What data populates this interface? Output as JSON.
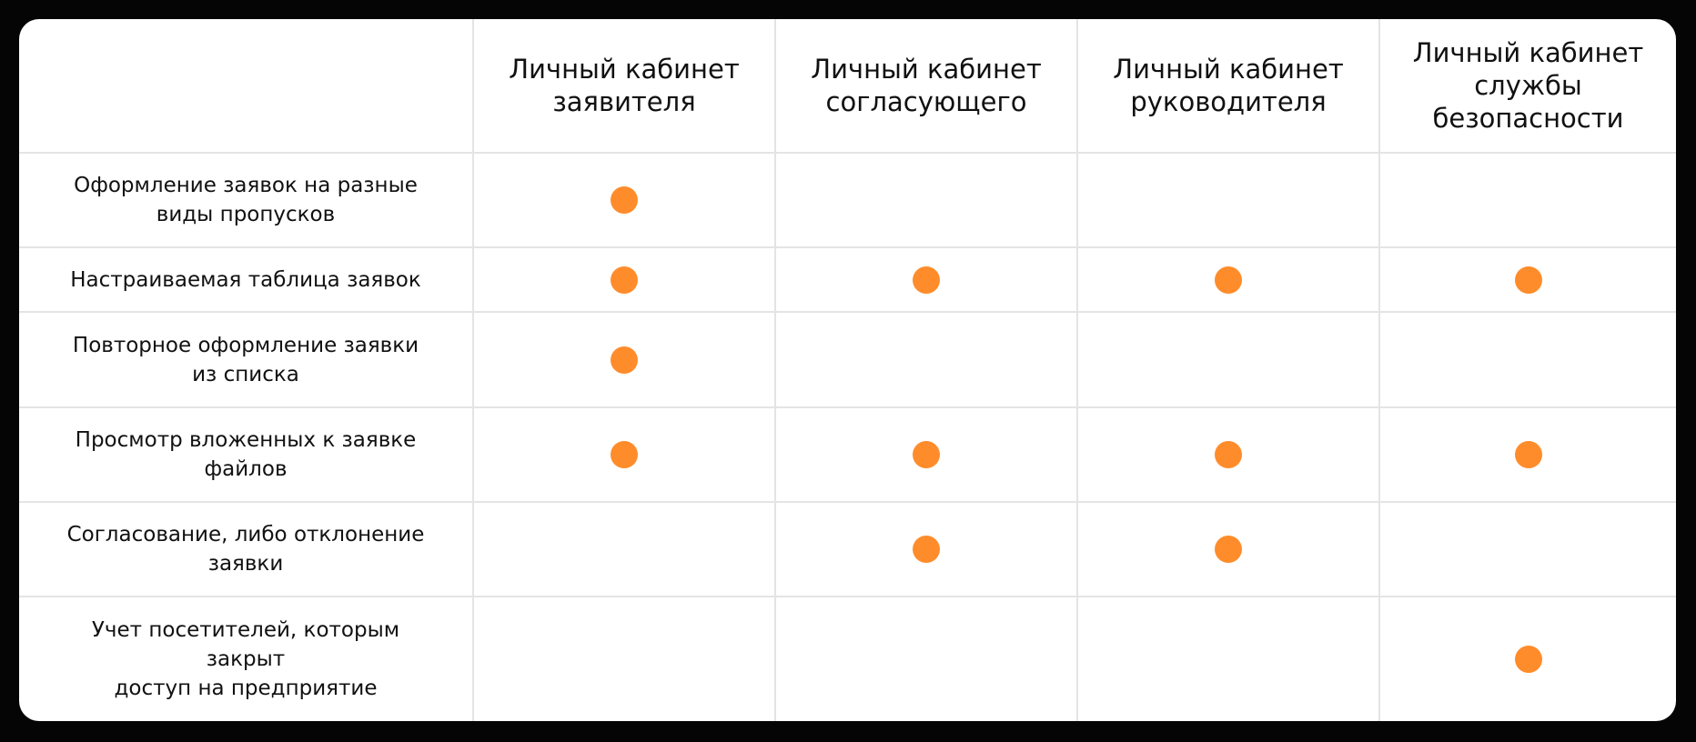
{
  "table": {
    "corner_label": "",
    "columns": [
      {
        "label": "Личный кабинет\nзаявителя"
      },
      {
        "label": "Личный кабинет\nсогласующего"
      },
      {
        "label": "Личный кабинет\nруководителя"
      },
      {
        "label": "Личный кабинет\nслужбы\nбезопасности"
      }
    ],
    "rows": [
      {
        "feature": "Оформление заявок на разные\nвиды пропусков",
        "marks": [
          true,
          false,
          false,
          false
        ]
      },
      {
        "feature": "Настраиваемая таблица заявок",
        "marks": [
          true,
          true,
          true,
          true
        ]
      },
      {
        "feature": "Повторное оформление заявки\nиз списка",
        "marks": [
          true,
          false,
          false,
          false
        ]
      },
      {
        "feature": "Просмотр  вложенных к заявке\nфайлов",
        "marks": [
          true,
          true,
          true,
          true
        ]
      },
      {
        "feature": "Согласование, либо отклонение\nзаявки",
        "marks": [
          false,
          true,
          true,
          false
        ]
      },
      {
        "feature": "Учет посетителей, которым\nзакрыт\nдоступ на предприятие",
        "marks": [
          false,
          false,
          false,
          true
        ]
      }
    ],
    "mark_icon": "filled-circle-icon",
    "colors": {
      "mark": "#FF8C2B",
      "grid_line": "#E4E4E4",
      "text": "#111111",
      "card_bg": "#FFFFFF",
      "page_bg": "#050505"
    }
  }
}
